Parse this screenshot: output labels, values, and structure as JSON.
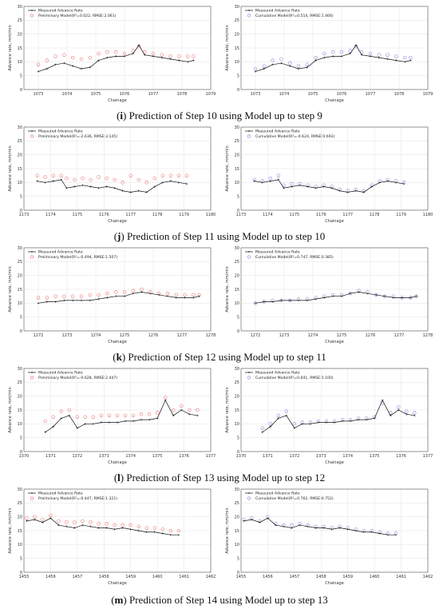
{
  "chart_data": [
    {
      "type": "line",
      "caption_letter": "i",
      "caption_rest": " Prediction of Step 10 using Model up to step 9",
      "xlabel": "Chainage",
      "ylabel": "Advance rate, mm/min",
      "xlim": [
        1072.5,
        1079
      ],
      "ylim": [
        0,
        30
      ],
      "xticks": [
        1073,
        1074,
        1075,
        1076,
        1077,
        1078,
        1079
      ],
      "yticks": [
        0,
        5,
        10,
        15,
        20,
        25,
        30
      ],
      "legend": [
        "Measured Advance Rate",
        "Preliminary Model(R²=0.022, RMSE:2.061)"
      ],
      "model_color": "#e86a6a",
      "x": [
        1073.0,
        1073.3,
        1073.6,
        1073.9,
        1074.2,
        1074.5,
        1074.8,
        1075.1,
        1075.4,
        1075.7,
        1076.0,
        1076.3,
        1076.5,
        1076.7,
        1077.0,
        1077.3,
        1077.6,
        1077.9,
        1078.2,
        1078.4
      ],
      "series": [
        {
          "name": "Measured Advance Rate",
          "values": [
            6.5,
            7.5,
            9.0,
            9.5,
            8.5,
            7.5,
            8.0,
            10.5,
            11.5,
            12.0,
            12.0,
            13.0,
            16.0,
            12.5,
            12.0,
            11.5,
            11.0,
            10.5,
            10.0,
            10.5
          ]
        },
        {
          "name": "Preliminary Model(R²=0.022, RMSE:2.061)",
          "values": [
            9.0,
            10.5,
            12.0,
            12.5,
            11.5,
            11.0,
            11.5,
            13.0,
            13.5,
            13.5,
            13.0,
            14.0,
            15.5,
            13.5,
            13.0,
            12.5,
            12.0,
            12.0,
            12.0,
            12.0
          ]
        }
      ]
    },
    {
      "type": "line",
      "xlabel": "Chainage",
      "ylabel": "Advance rate, mm/min",
      "xlim": [
        1072.5,
        1079
      ],
      "ylim": [
        0,
        30
      ],
      "xticks": [
        1073,
        1074,
        1075,
        1076,
        1077,
        1078,
        1079
      ],
      "yticks": [
        0,
        5,
        10,
        15,
        20,
        25,
        30
      ],
      "legend": [
        "Measured Advance Rate",
        "Cumulative Model(R²=0.514, RMSE:1.466)"
      ],
      "model_color": "#7b7fd8",
      "x": [
        1073.0,
        1073.3,
        1073.6,
        1073.9,
        1074.2,
        1074.5,
        1074.8,
        1075.1,
        1075.4,
        1075.7,
        1076.0,
        1076.3,
        1076.5,
        1076.7,
        1077.0,
        1077.3,
        1077.6,
        1077.9,
        1078.2,
        1078.4
      ],
      "series": [
        {
          "name": "Measured Advance Rate",
          "values": [
            6.5,
            7.5,
            9.0,
            9.5,
            8.5,
            7.5,
            8.0,
            10.5,
            11.5,
            12.0,
            12.0,
            13.0,
            16.0,
            12.5,
            12.0,
            11.5,
            11.0,
            10.5,
            10.0,
            10.5
          ]
        },
        {
          "name": "Cumulative Model(R²=0.514, RMSE:1.466)",
          "values": [
            7.5,
            8.5,
            10.5,
            11.0,
            9.5,
            8.5,
            9.0,
            11.5,
            13.0,
            13.5,
            13.5,
            14.0,
            15.5,
            13.5,
            13.0,
            12.5,
            12.5,
            12.0,
            11.5,
            11.5
          ]
        }
      ]
    },
    {
      "type": "line",
      "caption_letter": "j",
      "caption_rest": " Prediction of Step 11 using Model up to step 10",
      "xlabel": "Chainage",
      "ylabel": "Advance rate, mm/min",
      "xlim": [
        1173,
        1180
      ],
      "ylim": [
        0,
        30
      ],
      "xticks": [
        1173,
        1174,
        1175,
        1176,
        1177,
        1178,
        1179,
        1180
      ],
      "yticks": [
        0,
        5,
        10,
        15,
        20,
        25,
        30
      ],
      "legend": [
        "Measured Advance Rate",
        "Preliminary Model(R²=-2.636, RMSE:3.145)"
      ],
      "model_color": "#e86a6a",
      "x": [
        1173.5,
        1173.8,
        1174.1,
        1174.4,
        1174.6,
        1174.9,
        1175.2,
        1175.5,
        1175.8,
        1176.1,
        1176.4,
        1176.7,
        1177.0,
        1177.3,
        1177.6,
        1177.9,
        1178.2,
        1178.5,
        1178.8,
        1179.1
      ],
      "series": [
        {
          "name": "Measured Advance Rate",
          "values": [
            10.5,
            10.0,
            10.5,
            11.0,
            8.0,
            8.5,
            9.0,
            8.5,
            8.0,
            8.5,
            8.0,
            7.0,
            6.5,
            7.0,
            6.5,
            8.5,
            10.0,
            10.5,
            10.0,
            9.5
          ]
        },
        {
          "name": "Preliminary Model(R²=-2.636, RMSE:3.145)",
          "values": [
            12.5,
            12.0,
            12.5,
            12.5,
            11.5,
            11.0,
            11.5,
            11.0,
            12.0,
            11.5,
            11.0,
            10.0,
            12.5,
            11.0,
            10.0,
            11.5,
            12.5,
            12.5,
            12.5,
            12.5
          ]
        }
      ]
    },
    {
      "type": "line",
      "xlabel": "Chainage",
      "ylabel": "Advance rate, mm/min",
      "xlim": [
        1173,
        1180
      ],
      "ylim": [
        0,
        30
      ],
      "xticks": [
        1173,
        1174,
        1175,
        1176,
        1177,
        1178,
        1179,
        1180
      ],
      "yticks": [
        0,
        5,
        10,
        15,
        20,
        25,
        30
      ],
      "legend": [
        "Measured Advance Rate",
        "Cumulative Model(R²=-0.624, RMSE:0.693)"
      ],
      "model_color": "#7b7fd8",
      "x": [
        1173.5,
        1173.8,
        1174.1,
        1174.4,
        1174.6,
        1174.9,
        1175.2,
        1175.5,
        1175.8,
        1176.1,
        1176.4,
        1176.7,
        1177.0,
        1177.3,
        1177.6,
        1177.9,
        1178.2,
        1178.5,
        1178.8,
        1179.1
      ],
      "series": [
        {
          "name": "Measured Advance Rate",
          "values": [
            10.5,
            10.0,
            10.5,
            11.0,
            8.0,
            8.5,
            9.0,
            8.5,
            8.0,
            8.5,
            8.0,
            7.0,
            6.5,
            7.0,
            6.5,
            8.5,
            10.0,
            10.5,
            10.0,
            9.5
          ]
        },
        {
          "name": "Cumulative Model(R²=-0.624, RMSE:0.693)",
          "values": [
            11.0,
            10.5,
            11.5,
            12.5,
            9.0,
            9.5,
            9.5,
            9.0,
            8.5,
            9.0,
            8.5,
            7.5,
            7.0,
            7.5,
            7.0,
            9.0,
            10.5,
            11.0,
            10.5,
            10.0
          ]
        }
      ]
    },
    {
      "type": "line",
      "caption_letter": "k",
      "caption_rest": " Prediction of Step 12 using Model up to step 11",
      "xlabel": "Chainage",
      "ylabel": "Advance rate, mm/min",
      "xlim": [
        1271.5,
        1278
      ],
      "ylim": [
        0,
        30
      ],
      "xticks": [
        1272,
        1273,
        1274,
        1275,
        1276,
        1277,
        1278
      ],
      "yticks": [
        0,
        5,
        10,
        15,
        20,
        25,
        30
      ],
      "legend": [
        "Measured Advance Rate",
        "Preliminary Model(R²=-0.494, RMSE:1.507)"
      ],
      "model_color": "#e86a6a",
      "x": [
        1272.0,
        1272.3,
        1272.6,
        1272.9,
        1273.2,
        1273.5,
        1273.8,
        1274.1,
        1274.4,
        1274.7,
        1275.0,
        1275.3,
        1275.6,
        1275.9,
        1276.2,
        1276.5,
        1276.8,
        1277.1,
        1277.4,
        1277.6
      ],
      "series": [
        {
          "name": "Measured Advance Rate",
          "values": [
            10.0,
            10.5,
            10.5,
            11.0,
            11.0,
            11.0,
            11.0,
            11.5,
            12.0,
            12.5,
            12.5,
            13.5,
            14.0,
            13.5,
            13.0,
            12.5,
            12.0,
            12.0,
            12.0,
            12.5
          ]
        },
        {
          "name": "Preliminary Model(R²=-0.494, RMSE:1.507)",
          "values": [
            12.0,
            12.0,
            12.5,
            12.5,
            12.5,
            12.5,
            13.0,
            13.0,
            13.5,
            14.0,
            14.0,
            14.5,
            15.0,
            14.0,
            13.5,
            13.5,
            13.0,
            13.0,
            13.0,
            13.0
          ]
        }
      ]
    },
    {
      "type": "line",
      "xlabel": "Chainage",
      "ylabel": "Advance rate, mm/min",
      "xlim": [
        1271.5,
        1278
      ],
      "ylim": [
        0,
        30
      ],
      "xticks": [
        1272,
        1273,
        1274,
        1275,
        1276,
        1277,
        1278
      ],
      "yticks": [
        0,
        5,
        10,
        15,
        20,
        25,
        30
      ],
      "legend": [
        "Measured Advance Rate",
        "Cumulative Model(R²=0.747, RMSE:0.385)"
      ],
      "model_color": "#7b7fd8",
      "x": [
        1272.0,
        1272.3,
        1272.6,
        1272.9,
        1273.2,
        1273.5,
        1273.8,
        1274.1,
        1274.4,
        1274.7,
        1275.0,
        1275.3,
        1275.6,
        1275.9,
        1276.2,
        1276.5,
        1276.8,
        1277.1,
        1277.4,
        1277.6
      ],
      "series": [
        {
          "name": "Measured Advance Rate",
          "values": [
            10.0,
            10.5,
            10.5,
            11.0,
            11.0,
            11.0,
            11.0,
            11.5,
            12.0,
            12.5,
            12.5,
            13.5,
            14.0,
            13.5,
            13.0,
            12.5,
            12.0,
            12.0,
            12.0,
            12.5
          ]
        },
        {
          "name": "Cumulative Model(R²=0.747, RMSE:0.385)",
          "values": [
            10.0,
            10.5,
            11.0,
            11.0,
            11.0,
            11.5,
            11.5,
            12.0,
            12.5,
            13.0,
            13.0,
            13.5,
            14.5,
            14.0,
            13.0,
            12.5,
            12.5,
            12.0,
            12.0,
            12.5
          ]
        }
      ]
    },
    {
      "type": "line",
      "caption_letter": "l",
      "caption_rest": " Prediction of Step 13 using Model up to step 12",
      "xlabel": "Chainage",
      "ylabel": "Advance rate, mm/min",
      "xlim": [
        1370,
        1377
      ],
      "ylim": [
        0,
        30
      ],
      "xticks": [
        1370,
        1371,
        1372,
        1373,
        1374,
        1375,
        1376,
        1377
      ],
      "yticks": [
        0,
        5,
        10,
        15,
        20,
        25,
        30
      ],
      "legend": [
        "Measured Advance Rate",
        "Preliminary Model(R²=-0.628, RMSE:2.447)"
      ],
      "model_color": "#e86a6a",
      "x": [
        1370.8,
        1371.1,
        1371.4,
        1371.7,
        1372.0,
        1372.3,
        1372.6,
        1372.9,
        1373.2,
        1373.5,
        1373.8,
        1374.1,
        1374.4,
        1374.7,
        1375.0,
        1375.3,
        1375.6,
        1375.9,
        1376.2,
        1376.5
      ],
      "series": [
        {
          "name": "Measured Advance Rate",
          "values": [
            7.0,
            9.0,
            12.0,
            13.0,
            8.5,
            10.0,
            10.0,
            10.5,
            10.5,
            10.5,
            11.0,
            11.0,
            11.5,
            11.5,
            12.0,
            18.5,
            13.0,
            15.0,
            13.5,
            13.0
          ]
        },
        {
          "name": "Preliminary Model(R²=-0.628, RMSE:2.447)",
          "values": [
            11.0,
            12.5,
            14.5,
            15.0,
            12.5,
            12.5,
            12.5,
            13.0,
            13.0,
            13.0,
            13.0,
            13.0,
            13.5,
            13.5,
            14.0,
            19.5,
            15.0,
            16.5,
            15.0,
            15.0
          ]
        }
      ]
    },
    {
      "type": "line",
      "xlabel": "Chainage",
      "ylabel": "Advance rate, mm/min",
      "xlim": [
        1370,
        1377
      ],
      "ylim": [
        0,
        30
      ],
      "xticks": [
        1370,
        1371,
        1372,
        1373,
        1374,
        1375,
        1376,
        1377
      ],
      "yticks": [
        0,
        5,
        10,
        15,
        20,
        25,
        30
      ],
      "legend": [
        "Measured Advance Rate",
        "Cumulative Model(R²=0.641, RMSE:1.100)"
      ],
      "model_color": "#7b7fd8",
      "x": [
        1370.8,
        1371.1,
        1371.4,
        1371.7,
        1372.0,
        1372.3,
        1372.6,
        1372.9,
        1373.2,
        1373.5,
        1373.8,
        1374.1,
        1374.4,
        1374.7,
        1375.0,
        1375.3,
        1375.6,
        1375.9,
        1376.2,
        1376.5
      ],
      "series": [
        {
          "name": "Measured Advance Rate",
          "values": [
            7.0,
            9.0,
            12.0,
            13.0,
            8.5,
            10.0,
            10.0,
            10.5,
            10.5,
            10.5,
            11.0,
            11.0,
            11.5,
            11.5,
            12.0,
            18.5,
            13.0,
            15.0,
            13.5,
            13.0
          ]
        },
        {
          "name": "Cumulative Model(R²=0.641, RMSE:1.100)",
          "values": [
            8.5,
            10.0,
            13.0,
            14.5,
            10.0,
            10.5,
            10.5,
            11.0,
            11.0,
            11.0,
            11.5,
            11.5,
            12.0,
            12.0,
            12.5,
            17.5,
            14.0,
            16.0,
            14.5,
            14.0
          ]
        }
      ]
    },
    {
      "type": "line",
      "caption_letter": "m",
      "caption_rest": " Prediction of Step 14 using Model up to step 13",
      "xlabel": "Chainage",
      "ylabel": "Advance rate, mm/min",
      "xlim": [
        1455,
        1462
      ],
      "ylim": [
        0,
        30
      ],
      "xticks": [
        1455,
        1456,
        1457,
        1458,
        1459,
        1460,
        1461,
        1462
      ],
      "yticks": [
        0,
        5,
        10,
        15,
        20,
        25,
        30
      ],
      "legend": [
        "Measured Advance Rate",
        "Preliminary Model(R²=-0.447, RMSE:1.321)"
      ],
      "model_color": "#e86a6a",
      "x": [
        1455.1,
        1455.4,
        1455.7,
        1456.0,
        1456.3,
        1456.6,
        1456.9,
        1457.2,
        1457.5,
        1457.8,
        1458.1,
        1458.4,
        1458.7,
        1459.0,
        1459.3,
        1459.6,
        1459.9,
        1460.2,
        1460.5,
        1460.8
      ],
      "series": [
        {
          "name": "Measured Advance Rate",
          "values": [
            18.5,
            19.0,
            18.0,
            19.5,
            17.0,
            16.5,
            16.0,
            17.0,
            16.5,
            16.0,
            16.0,
            15.5,
            16.0,
            15.5,
            15.0,
            14.5,
            14.5,
            14.0,
            13.5,
            13.5
          ]
        },
        {
          "name": "Preliminary Model(R²=-0.447, RMSE:1.321)",
          "values": [
            19.5,
            20.0,
            19.0,
            20.5,
            18.5,
            18.0,
            18.0,
            18.5,
            18.0,
            17.5,
            17.5,
            17.0,
            17.0,
            17.0,
            16.5,
            16.0,
            16.0,
            15.5,
            15.0,
            15.0
          ]
        }
      ]
    },
    {
      "type": "line",
      "xlabel": "Chainage",
      "ylabel": "Advance rate, mm/min",
      "xlim": [
        1455,
        1462
      ],
      "ylim": [
        0,
        30
      ],
      "xticks": [
        1455,
        1456,
        1457,
        1458,
        1459,
        1460,
        1461,
        1462
      ],
      "yticks": [
        0,
        5,
        10,
        15,
        20,
        25,
        30
      ],
      "legend": [
        "Measured Advance Rate",
        "Cumulative Model(R²=0.762, RMSE:0.752)"
      ],
      "model_color": "#7b7fd8",
      "x": [
        1455.1,
        1455.4,
        1455.7,
        1456.0,
        1456.3,
        1456.6,
        1456.9,
        1457.2,
        1457.5,
        1457.8,
        1458.1,
        1458.4,
        1458.7,
        1459.0,
        1459.3,
        1459.6,
        1459.9,
        1460.2,
        1460.5,
        1460.8
      ],
      "series": [
        {
          "name": "Measured Advance Rate",
          "values": [
            18.5,
            19.0,
            18.0,
            19.5,
            17.0,
            16.5,
            16.0,
            17.0,
            16.5,
            16.0,
            16.0,
            15.5,
            16.0,
            15.5,
            15.0,
            14.5,
            14.5,
            14.0,
            13.5,
            13.5
          ]
        },
        {
          "name": "Cumulative Model(R²=0.762, RMSE:0.752)",
          "values": [
            19.0,
            19.5,
            18.5,
            20.0,
            17.5,
            17.0,
            17.0,
            17.5,
            17.0,
            16.5,
            16.5,
            16.0,
            16.5,
            16.0,
            15.5,
            15.0,
            15.0,
            14.5,
            14.0,
            14.0
          ]
        }
      ]
    }
  ]
}
